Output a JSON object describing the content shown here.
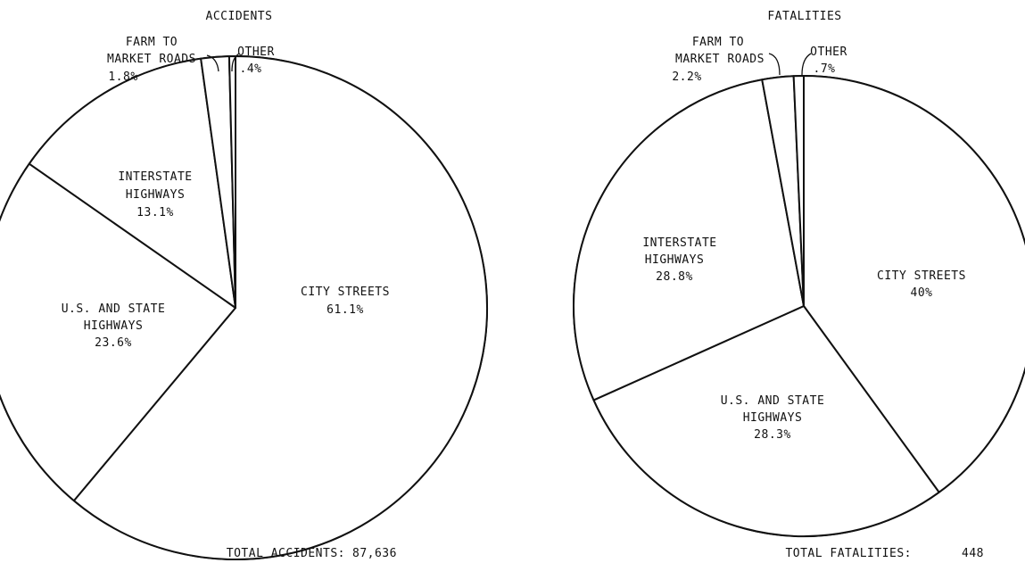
{
  "chart_data": [
    {
      "type": "pie",
      "title": "ACCIDENTS",
      "total_label": "TOTAL ACCIDENTS:",
      "total_value": "87,636",
      "slices": [
        {
          "line1": "CITY STREETS",
          "line2": "",
          "pct_label": "61.1%",
          "value": 61.1
        },
        {
          "line1": "U.S. AND STATE",
          "line2": "HIGHWAYS",
          "pct_label": "23.6%",
          "value": 23.6
        },
        {
          "line1": "INTERSTATE",
          "line2": "HIGHWAYS",
          "pct_label": "13.1%",
          "value": 13.1
        },
        {
          "line1": "FARM TO",
          "line2": "MARKET ROADS",
          "pct_label": "1.8%",
          "value": 1.8
        },
        {
          "line1": "OTHER",
          "line2": "",
          "pct_label": ".4%",
          "value": 0.4
        }
      ]
    },
    {
      "type": "pie",
      "title": "FATALITIES",
      "total_label": "TOTAL FATALITIES:",
      "total_value": "448",
      "slices": [
        {
          "line1": "CITY STREETS",
          "line2": "",
          "pct_label": "40%",
          "value": 40
        },
        {
          "line1": "U.S. AND STATE",
          "line2": "HIGHWAYS",
          "pct_label": "28.3%",
          "value": 28.3
        },
        {
          "line1": "INTERSTATE",
          "line2": "HIGHWAYS",
          "pct_label": "28.8%",
          "value": 28.8
        },
        {
          "line1": "FARM TO",
          "line2": "MARKET ROADS",
          "pct_label": "2.2%",
          "value": 2.2
        },
        {
          "line1": "OTHER",
          "line2": "",
          "pct_label": ".7%",
          "value": 0.7
        }
      ]
    }
  ]
}
